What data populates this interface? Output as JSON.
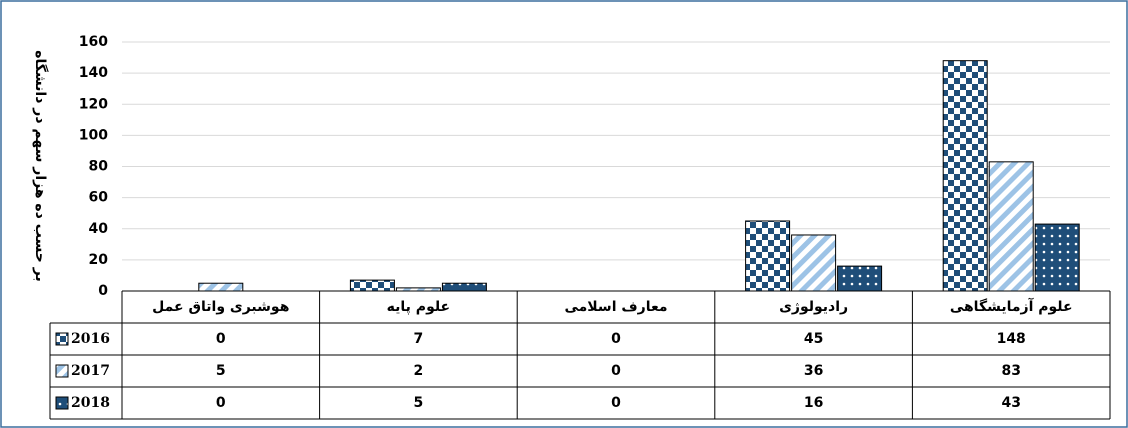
{
  "chart_data": {
    "type": "bar",
    "y_axis_label": "بر حسب ده هزار سهم در دانشگاه",
    "categories": [
      "هوشبری واتاق عمل",
      "علوم پایه",
      "معارف اسلامی",
      "رادیولوژی",
      "علوم آزمایشگاهی"
    ],
    "series": [
      {
        "name": "2016",
        "color": "#1f4e79",
        "pattern": "checker",
        "values": [
          0,
          7,
          0,
          45,
          148
        ]
      },
      {
        "name": "2017",
        "color": "#9dc3e6",
        "pattern": "diagonal",
        "values": [
          5,
          2,
          0,
          36,
          83
        ]
      },
      {
        "name": "2018",
        "color": "#1f4e79",
        "pattern": "dots",
        "values": [
          0,
          5,
          0,
          16,
          43
        ]
      }
    ],
    "ylim": [
      0,
      160
    ],
    "yticks": [
      0,
      20,
      40,
      60,
      80,
      100,
      120,
      140,
      160
    ],
    "grid": true,
    "data_table": true
  }
}
